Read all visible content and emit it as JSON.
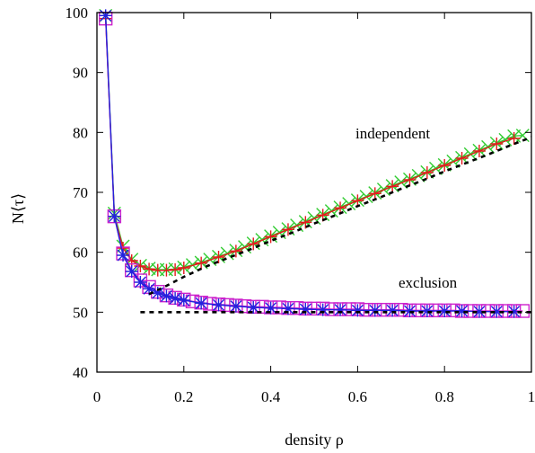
{
  "chart_data": {
    "type": "line",
    "title": "",
    "xlabel": "density ρ",
    "ylabel": "N⟨τ⟩",
    "xlim": [
      0,
      1
    ],
    "ylim": [
      40,
      100
    ],
    "x_ticks": [
      "0",
      "0.2",
      "0.4",
      "0.6",
      "0.8",
      "1"
    ],
    "y_ticks": [
      "40",
      "50",
      "60",
      "70",
      "80",
      "90",
      "100"
    ],
    "grid": false,
    "legend": "none",
    "annotations": [
      {
        "text": "independent",
        "x": 0.73,
        "y": 80
      },
      {
        "text": "exclusion",
        "x": 0.77,
        "y": 55
      }
    ],
    "colors": {
      "red": "#e41a1c",
      "green": "#33cc33",
      "blue": "#2222dd",
      "magenta": "#cc22cc",
      "black": "#000000"
    },
    "series": [
      {
        "group": "independent",
        "color": "green",
        "marker": "x",
        "x": [
          0.02,
          0.04,
          0.06,
          0.08,
          0.1,
          0.12,
          0.14,
          0.16,
          0.18,
          0.2,
          0.22,
          0.24,
          0.26,
          0.28,
          0.3,
          0.32,
          0.34,
          0.36,
          0.38,
          0.4,
          0.42,
          0.44,
          0.46,
          0.48,
          0.5,
          0.52,
          0.54,
          0.56,
          0.58,
          0.6,
          0.62,
          0.64,
          0.66,
          0.68,
          0.7,
          0.72,
          0.74,
          0.76,
          0.78,
          0.8,
          0.82,
          0.84,
          0.86,
          0.88,
          0.9,
          0.92,
          0.94,
          0.96,
          0.98
        ],
        "y": [
          99.5,
          66.5,
          61.0,
          58.8,
          57.8,
          57.3,
          57.1,
          57.1,
          57.2,
          57.5,
          57.9,
          58.3,
          58.8,
          59.3,
          59.8,
          60.3,
          60.9,
          61.5,
          62.1,
          62.7,
          63.3,
          63.9,
          64.5,
          65.1,
          65.7,
          66.3,
          66.9,
          67.5,
          68.1,
          68.7,
          69.3,
          69.9,
          70.5,
          71.1,
          71.7,
          72.2,
          72.8,
          73.4,
          74.0,
          74.6,
          75.2,
          75.8,
          76.4,
          77.0,
          77.6,
          78.2,
          78.8,
          79.4,
          79.5
        ]
      },
      {
        "group": "independent",
        "color": "red",
        "marker": "+",
        "x": [
          0.02,
          0.04,
          0.06,
          0.08,
          0.1,
          0.12,
          0.14,
          0.16,
          0.18,
          0.2,
          0.24,
          0.28,
          0.32,
          0.36,
          0.4,
          0.44,
          0.48,
          0.52,
          0.56,
          0.6,
          0.64,
          0.68,
          0.72,
          0.76,
          0.8,
          0.84,
          0.88,
          0.92,
          0.96
        ],
        "y": [
          99.0,
          66.0,
          60.7,
          58.6,
          57.7,
          57.2,
          57.0,
          57.0,
          57.1,
          57.4,
          58.2,
          59.2,
          60.2,
          61.4,
          62.6,
          63.8,
          65.0,
          66.2,
          67.4,
          68.6,
          69.8,
          71.0,
          72.1,
          73.3,
          74.5,
          75.7,
          76.9,
          78.1,
          79.0
        ]
      },
      {
        "group": "exclusion",
        "color": "magenta",
        "marker": "square",
        "x": [
          0.02,
          0.04,
          0.06,
          0.08,
          0.1,
          0.12,
          0.14,
          0.16,
          0.18,
          0.2,
          0.22,
          0.24,
          0.26,
          0.28,
          0.3,
          0.32,
          0.34,
          0.36,
          0.38,
          0.4,
          0.42,
          0.44,
          0.46,
          0.48,
          0.5,
          0.52,
          0.54,
          0.56,
          0.58,
          0.6,
          0.62,
          0.64,
          0.66,
          0.68,
          0.7,
          0.72,
          0.74,
          0.76,
          0.78,
          0.8,
          0.82,
          0.84,
          0.86,
          0.88,
          0.9,
          0.92,
          0.94,
          0.96,
          0.98
        ],
        "y": [
          99.0,
          66.0,
          59.8,
          57.0,
          55.3,
          54.2,
          53.4,
          52.8,
          52.4,
          52.1,
          51.8,
          51.6,
          51.4,
          51.3,
          51.2,
          51.1,
          51.0,
          50.9,
          50.9,
          50.8,
          50.8,
          50.7,
          50.7,
          50.6,
          50.6,
          50.6,
          50.5,
          50.5,
          50.5,
          50.5,
          50.4,
          50.4,
          50.4,
          50.4,
          50.4,
          50.3,
          50.3,
          50.3,
          50.3,
          50.3,
          50.3,
          50.2,
          50.2,
          50.2,
          50.2,
          50.2,
          50.2,
          50.2,
          50.2
        ]
      },
      {
        "group": "exclusion",
        "color": "blue",
        "marker": "asterisk",
        "x": [
          0.02,
          0.04,
          0.06,
          0.08,
          0.1,
          0.12,
          0.14,
          0.16,
          0.18,
          0.2,
          0.24,
          0.28,
          0.32,
          0.36,
          0.4,
          0.44,
          0.48,
          0.52,
          0.56,
          0.6,
          0.64,
          0.68,
          0.72,
          0.76,
          0.8,
          0.84,
          0.88,
          0.92,
          0.96
        ],
        "y": [
          99.5,
          66.0,
          59.5,
          56.8,
          55.0,
          53.9,
          53.2,
          52.7,
          52.3,
          52.0,
          51.5,
          51.2,
          51.0,
          50.8,
          50.7,
          50.6,
          50.5,
          50.4,
          50.4,
          50.3,
          50.3,
          50.3,
          50.2,
          50.2,
          50.2,
          50.2,
          50.1,
          50.1,
          50.1
        ]
      },
      {
        "group": "independent",
        "color": "black",
        "marker": "dashed",
        "x": [
          0.12,
          0.16,
          0.2,
          0.25,
          0.3,
          0.35,
          0.4,
          0.45,
          0.5,
          0.55,
          0.6,
          0.65,
          0.7,
          0.75,
          0.8,
          0.85,
          0.9,
          0.95,
          1.0
        ],
        "y": [
          53.0,
          54.4,
          55.9,
          57.6,
          59.0,
          60.4,
          61.9,
          63.3,
          64.8,
          66.2,
          67.7,
          69.1,
          70.6,
          72.0,
          73.5,
          74.9,
          76.3,
          77.8,
          79.2
        ]
      },
      {
        "group": "exclusion",
        "color": "black",
        "marker": "dashed",
        "x": [
          0.1,
          0.15,
          0.2,
          0.25,
          0.3,
          0.4,
          0.5,
          0.6,
          0.7,
          0.8,
          0.9,
          1.0
        ],
        "y": [
          50.0,
          50.0,
          50.0,
          50.0,
          50.0,
          50.0,
          50.0,
          50.0,
          50.0,
          50.0,
          50.0,
          50.0
        ]
      }
    ]
  }
}
